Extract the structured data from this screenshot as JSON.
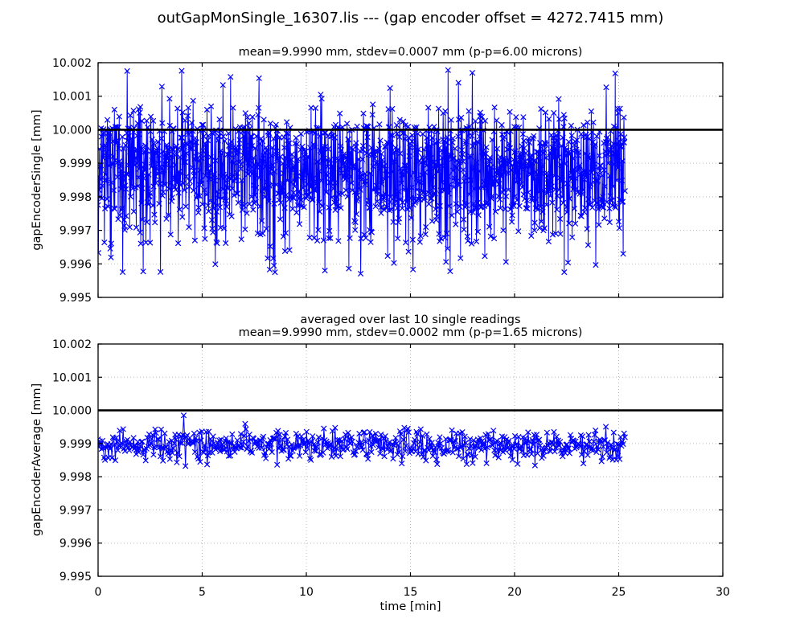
{
  "figure": {
    "title": "outGapMonSingle_16307.lis --- (gap encoder offset = 4272.7415 mm)",
    "background": "#ffffff"
  },
  "chart_data": [
    {
      "type": "line",
      "title_lines": [
        "mean=9.9990 mm, stdev=0.0007 mm (p-p=6.00 microns)"
      ],
      "ylabel": "gapEncoderSingle [mm]",
      "xlabel": "",
      "xlim": [
        0,
        30
      ],
      "ylim": [
        9.995,
        10.002
      ],
      "xticks": [
        0,
        5,
        10,
        15,
        20,
        25,
        30
      ],
      "xtick_labels": [
        "0",
        "5",
        "10",
        "15",
        "20",
        "25",
        "30"
      ],
      "show_xtick_labels": false,
      "yticks": [
        9.995,
        9.996,
        9.997,
        9.998,
        9.999,
        10.0,
        10.001,
        10.002
      ],
      "ytick_labels": [
        "9.995",
        "9.996",
        "9.997",
        "9.998",
        "9.999",
        "10.000",
        "10.001",
        "10.002"
      ],
      "grid": {
        "style": "dotted",
        "color": "#b9b9b9"
      },
      "marker": "x",
      "line_color": "#0000ff",
      "reference_line": {
        "y": 10.0,
        "color": "#000000",
        "width": 2.6
      },
      "series": [
        {
          "name": "gapEncoderSingle",
          "stats": {
            "mean_mm": 9.999,
            "stdev_mm": 0.0007,
            "p2p_microns": 6.0,
            "min_mm": 9.9957,
            "max_mm": 10.0018
          },
          "n_points": 1520,
          "x_start": 0,
          "x_end": 25.3,
          "distribution": {
            "kind": "mixture",
            "components": [
              {
                "p": 0.79,
                "lo": 9.9976,
                "hi": 10.0001
              },
              {
                "p": 0.1,
                "lo": 9.9966,
                "hi": 9.9976
              },
              {
                "p": 0.07,
                "lo": 10.0001,
                "hi": 10.0007
              },
              {
                "p": 0.025,
                "lo": 9.9957,
                "hi": 9.9966
              },
              {
                "p": 0.015,
                "lo": 10.0007,
                "hi": 10.0018
              }
            ]
          },
          "spikes": [
            {
              "x": 1.4,
              "y": 10.00175
            },
            {
              "x": 16.8,
              "y": 10.00178
            },
            {
              "x": 17.3,
              "y": 10.0014
            },
            {
              "x": 8.5,
              "y": 9.99575
            },
            {
              "x": 10.9,
              "y": 9.9958
            },
            {
              "x": 16.9,
              "y": 9.99578
            }
          ]
        }
      ]
    },
    {
      "type": "line",
      "title_lines": [
        "averaged over last 10 single readings",
        "mean=9.9990 mm, stdev=0.0002 mm (p-p=1.65 microns)"
      ],
      "ylabel": "gapEncoderAverage [mm]",
      "xlabel": "time [min]",
      "xlim": [
        0,
        30
      ],
      "ylim": [
        9.995,
        10.002
      ],
      "xticks": [
        0,
        5,
        10,
        15,
        20,
        25,
        30
      ],
      "xtick_labels": [
        "0",
        "5",
        "10",
        "15",
        "20",
        "25",
        "30"
      ],
      "show_xtick_labels": true,
      "yticks": [
        9.995,
        9.996,
        9.997,
        9.998,
        9.999,
        10.0,
        10.001,
        10.002
      ],
      "ytick_labels": [
        "9.995",
        "9.996",
        "9.997",
        "9.998",
        "9.999",
        "10.000",
        "10.001",
        "10.002"
      ],
      "grid": {
        "style": "dotted",
        "color": "#b9b9b9"
      },
      "marker": "x",
      "line_color": "#0000ff",
      "reference_line": {
        "y": 10.0,
        "color": "#000000",
        "width": 2.6
      },
      "series": [
        {
          "name": "gapEncoderAverage",
          "stats": {
            "mean_mm": 9.999,
            "stdev_mm": 0.0002,
            "p2p_microns": 1.65,
            "min_mm": 9.9983,
            "max_mm": 9.9999
          },
          "n_points": 610,
          "x_start": 0,
          "x_end": 25.3,
          "distribution": {
            "kind": "gauss3",
            "mean": 9.99895,
            "scale": 0.00045,
            "clip": [
              9.99835,
              9.99965
            ]
          },
          "spikes": [
            {
              "x": 4.1,
              "y": 9.99985
            },
            {
              "x": 4.2,
              "y": 9.99832
            },
            {
              "x": 8.6,
              "y": 9.99836
            },
            {
              "x": 14.6,
              "y": 9.9984
            },
            {
              "x": 16.3,
              "y": 9.99838
            },
            {
              "x": 21.0,
              "y": 9.99834
            },
            {
              "x": 23.3,
              "y": 9.9984
            }
          ]
        }
      ]
    }
  ]
}
